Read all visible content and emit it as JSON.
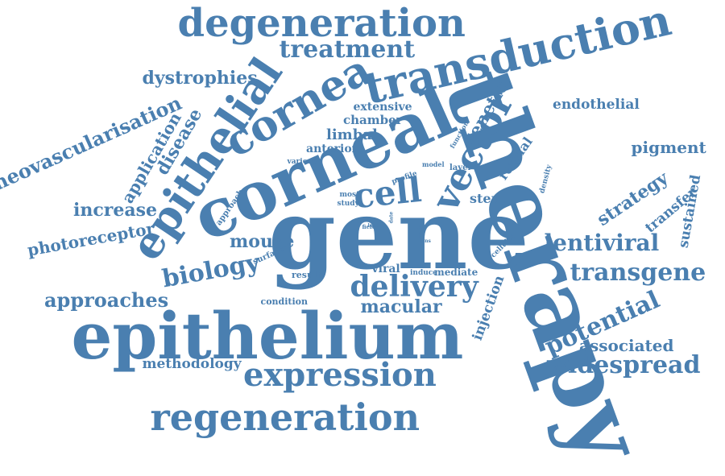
{
  "color": "#4a7fb0",
  "words": [
    {
      "id": "w-therapy",
      "text": "therapy",
      "size": 118,
      "rot": 70
    },
    {
      "id": "w-gene",
      "text": "gene",
      "size": 120,
      "rot": 0
    },
    {
      "id": "w-epithelium",
      "text": "epithelium",
      "size": 80,
      "rot": 0
    },
    {
      "id": "w-corneal",
      "text": "corneal",
      "size": 82,
      "rot": -24
    },
    {
      "id": "w-transduction",
      "text": "transduction",
      "size": 54,
      "rot": -13
    },
    {
      "id": "w-degeneration",
      "text": "degeneration",
      "size": 48,
      "rot": 0
    },
    {
      "id": "w-epithelial",
      "text": "epithelial",
      "size": 54,
      "rot": -56
    },
    {
      "id": "w-cornea",
      "text": "cornea",
      "size": 52,
      "rot": -30
    },
    {
      "id": "w-regeneration",
      "text": "regeneration",
      "size": 46,
      "rot": 0
    },
    {
      "id": "w-expression",
      "text": "expression",
      "size": 40,
      "rot": 0
    },
    {
      "id": "w-vector",
      "text": "vector",
      "size": 46,
      "rot": -62
    },
    {
      "id": "w-cell",
      "text": "cell",
      "size": 42,
      "rot": -6
    },
    {
      "id": "w-delivery",
      "text": "delivery",
      "size": 36,
      "rot": 0
    },
    {
      "id": "w-widespread",
      "text": "widespread",
      "size": 30,
      "rot": 0
    },
    {
      "id": "w-transgene",
      "text": "transgene",
      "size": 30,
      "rot": 0
    },
    {
      "id": "w-potential",
      "text": "potential",
      "size": 30,
      "rot": -24
    },
    {
      "id": "w-treatment",
      "text": "treatment",
      "size": 30,
      "rot": 0
    },
    {
      "id": "w-biology",
      "text": "biology",
      "size": 30,
      "rot": -10
    },
    {
      "id": "w-lentiviral",
      "text": "lentiviral",
      "size": 28,
      "rot": 0
    },
    {
      "id": "w-approaches",
      "text": "approaches",
      "size": 24,
      "rot": 0
    },
    {
      "id": "w-macular",
      "text": "macular",
      "size": 22,
      "rot": 0
    },
    {
      "id": "w-neovascularisation",
      "text": "neovascularisation",
      "size": 24,
      "rot": -24
    },
    {
      "id": "w-dystrophies",
      "text": "dystrophies",
      "size": 22,
      "rot": 0
    },
    {
      "id": "w-increase",
      "text": "increase",
      "size": 22,
      "rot": 0
    },
    {
      "id": "w-mouse",
      "text": "mouse",
      "size": 22,
      "rot": 0
    },
    {
      "id": "w-strategy",
      "text": "strategy",
      "size": 22,
      "rot": -34
    },
    {
      "id": "w-photoreceptor",
      "text": "photoreceptor",
      "size": 20,
      "rot": -10
    },
    {
      "id": "w-associated",
      "text": "associated",
      "size": 20,
      "rot": 0
    },
    {
      "id": "w-pigment",
      "text": "pigment",
      "size": 20,
      "rot": 0
    },
    {
      "id": "w-genetic",
      "text": "genetic",
      "size": 22,
      "rot": -60
    },
    {
      "id": "w-disease",
      "text": "disease",
      "size": 22,
      "rot": -60
    },
    {
      "id": "w-application",
      "text": "application",
      "size": 20,
      "rot": -60
    },
    {
      "id": "w-methodology",
      "text": "methodology",
      "size": 17,
      "rot": 0
    },
    {
      "id": "w-endothelial",
      "text": "endothelial",
      "size": 17,
      "rot": 0
    },
    {
      "id": "w-transfer",
      "text": "transfer",
      "size": 17,
      "rot": -40
    },
    {
      "id": "w-sustained",
      "text": "sustained",
      "size": 17,
      "rot": -80
    },
    {
      "id": "w-injection",
      "text": "injection",
      "size": 17,
      "rot": -70
    },
    {
      "id": "w-limbal",
      "text": "limbal",
      "size": 18,
      "rot": 0
    },
    {
      "id": "w-chamber",
      "text": "chamber",
      "size": 15,
      "rot": 0
    },
    {
      "id": "w-extensive",
      "text": "extensive",
      "size": 14,
      "rot": 0
    },
    {
      "id": "w-anterior",
      "text": "anterior",
      "size": 14,
      "rot": 0
    },
    {
      "id": "w-retinal",
      "text": "retinal",
      "size": 16,
      "rot": -55
    },
    {
      "id": "w-stem",
      "text": "stem",
      "size": 16,
      "rot": 0
    },
    {
      "id": "w-viral",
      "text": "viral",
      "size": 14,
      "rot": 0
    },
    {
      "id": "w-mediate",
      "text": "mediate",
      "size": 12,
      "rot": 0
    },
    {
      "id": "w-condition",
      "text": "condition",
      "size": 11,
      "rot": 0
    },
    {
      "id": "w-result",
      "text": "result",
      "size": 11,
      "rot": 0
    },
    {
      "id": "w-surface",
      "text": "surface",
      "size": 10,
      "rot": -24
    },
    {
      "id": "w-approach",
      "text": "approach",
      "size": 10,
      "rot": -55
    },
    {
      "id": "w-various",
      "text": "various",
      "size": 9,
      "rot": 0
    },
    {
      "id": "w-most",
      "text": "most",
      "size": 9,
      "rot": 0
    },
    {
      "id": "w-study",
      "text": "study",
      "size": 9,
      "rot": 0
    },
    {
      "id": "w-model",
      "text": "model",
      "size": 8,
      "rot": 0
    },
    {
      "id": "w-layer",
      "text": "layer",
      "size": 10,
      "rot": 0
    },
    {
      "id": "w-profile",
      "text": "profile",
      "size": 9,
      "rot": -20
    },
    {
      "id": "w-function",
      "text": "function",
      "size": 8,
      "rot": -60
    },
    {
      "id": "w-density",
      "text": "density",
      "size": 9,
      "rot": -75
    },
    {
      "id": "w-cellular",
      "text": "cellular",
      "size": 9,
      "rot": -45
    },
    {
      "id": "w-induce",
      "text": "induce",
      "size": 9,
      "rot": 0
    },
    {
      "id": "w-field",
      "text": "field",
      "size": 7,
      "rot": 0
    },
    {
      "id": "w-loss",
      "text": "loss",
      "size": 6,
      "rot": 0
    },
    {
      "id": "w-work",
      "text": "work",
      "size": 6,
      "rot": -90
    },
    {
      "id": "w-lens",
      "text": "lens",
      "size": 6,
      "rot": 0
    },
    {
      "id": "w-date",
      "text": "date",
      "size": 6,
      "rot": -90
    }
  ]
}
